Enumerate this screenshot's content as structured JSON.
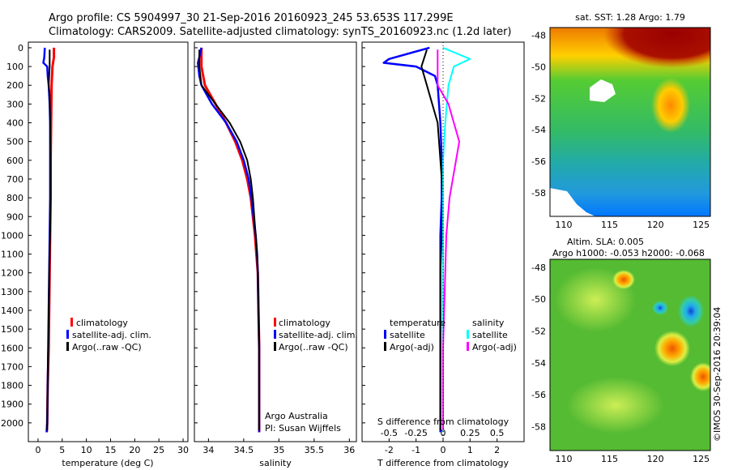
{
  "header": {
    "line1": "Argo profile: CS 5904997_30 21-Sep-2016 20160923_245 53.653S 117.299E",
    "line2": "Climatology: CARS2009. Satellite-adjusted climatology: synTS_20160923.nc (1.2d later)"
  },
  "colors": {
    "climatology": "#ff0000",
    "satellite": "#0000ff",
    "argo": "#000000",
    "sat_salinity": "#00ffff",
    "argo_salinity": "#ff00ff",
    "dotted": "#000000"
  },
  "depth_ticks": [
    "0",
    "100",
    "200",
    "300",
    "400",
    "500",
    "600",
    "700",
    "800",
    "900",
    "1000",
    "1100",
    "1200",
    "1300",
    "1400",
    "1500",
    "1600",
    "1700",
    "1800",
    "1900",
    "2000"
  ],
  "panels": {
    "temperature": {
      "xlabel": "temperature (deg C)",
      "xticks": [
        "0",
        "5",
        "10",
        "15",
        "20",
        "25",
        "30"
      ],
      "legend": [
        "climatology",
        "satellite-adj. clim.",
        "Argo(..raw -QC)"
      ]
    },
    "salinity": {
      "xlabel": "salinity",
      "xticks": [
        "34",
        "34.5",
        "35",
        "35.5",
        "36"
      ],
      "legend": [
        "climatology",
        "satellite-adj. clim.",
        "Argo(..raw -QC)"
      ],
      "note1": "Argo Australia",
      "note2": "PI: Susan Wijffels"
    },
    "difference": {
      "xlabel": "T difference from climatology",
      "xticks": [
        "-2",
        "-1",
        "0",
        "1",
        "2"
      ],
      "top_label": "S difference from climatology",
      "top_ticks": [
        "-0.5",
        "-0.25",
        "0",
        "0.25",
        "0.5"
      ],
      "legend_temp_title": "temperature",
      "legend_sal_title": "salinity",
      "legend_temp": [
        "satellite",
        "Argo(-adj)"
      ],
      "legend_sal": [
        "satellite",
        "Argo(-adj)"
      ]
    }
  },
  "maps": {
    "sst_title": "sat. SST: 1.28 Argo: 1.79",
    "sla_title1": "Altim. SLA: 0.005",
    "sla_title2": "Argo h1000: -0.053 h2000: -0.068",
    "lat_ticks": [
      "-48",
      "-50",
      "-52",
      "-54",
      "-56",
      "-58"
    ],
    "lon_ticks": [
      "110",
      "115",
      "120",
      "125"
    ],
    "credit": "©IMOS 30-Sep-2016 20:39:04"
  },
  "chart_data": [
    {
      "type": "line",
      "title": "",
      "xlabel": "temperature (deg C)",
      "ylabel": "",
      "xlim": [
        -2,
        31
      ],
      "ylim": [
        2100,
        0
      ],
      "series": [
        {
          "name": "climatology",
          "points": [
            [
              3.3,
              0
            ],
            [
              3.3,
              50
            ],
            [
              3.0,
              100
            ],
            [
              2.8,
              200
            ],
            [
              2.7,
              400
            ],
            [
              2.6,
              600
            ],
            [
              2.6,
              800
            ],
            [
              2.5,
              1000
            ],
            [
              2.4,
              1200
            ],
            [
              2.3,
              1400
            ],
            [
              2.2,
              1600
            ],
            [
              2.0,
              1800
            ],
            [
              1.9,
              2000
            ],
            [
              1.8,
              2050
            ]
          ]
        },
        {
          "name": "satellite-adj. clim.",
          "points": [
            [
              1.4,
              0
            ],
            [
              1.3,
              50
            ],
            [
              1.1,
              80
            ],
            [
              1.9,
              100
            ],
            [
              2.0,
              150
            ],
            [
              2.2,
              200
            ],
            [
              2.4,
              300
            ],
            [
              2.5,
              400
            ],
            [
              2.5,
              600
            ],
            [
              2.5,
              800
            ],
            [
              2.4,
              1000
            ],
            [
              2.3,
              1200
            ],
            [
              2.2,
              1400
            ],
            [
              2.1,
              1600
            ],
            [
              2.0,
              1800
            ],
            [
              1.9,
              2000
            ],
            [
              1.8,
              2050
            ]
          ]
        },
        {
          "name": "Argo(..raw -QC)",
          "points": [
            [
              2.4,
              10
            ],
            [
              2.4,
              100
            ],
            [
              2.2,
              200
            ],
            [
              2.4,
              250
            ],
            [
              2.5,
              400
            ],
            [
              2.6,
              600
            ],
            [
              2.6,
              800
            ],
            [
              2.5,
              1000
            ],
            [
              2.3,
              1200
            ],
            [
              2.2,
              1400
            ],
            [
              2.1,
              1600
            ],
            [
              2.0,
              1800
            ],
            [
              1.9,
              2000
            ],
            [
              1.9,
              2040
            ]
          ]
        }
      ]
    },
    {
      "type": "line",
      "title": "",
      "xlabel": "salinity",
      "ylabel": "",
      "xlim": [
        33.8,
        36.1
      ],
      "ylim": [
        2100,
        0
      ],
      "series": [
        {
          "name": "climatology",
          "points": [
            [
              33.9,
              0
            ],
            [
              33.9,
              100
            ],
            [
              33.95,
              200
            ],
            [
              34.1,
              300
            ],
            [
              34.25,
              400
            ],
            [
              34.38,
              500
            ],
            [
              34.48,
              600
            ],
            [
              34.55,
              700
            ],
            [
              34.6,
              800
            ],
            [
              34.63,
              900
            ],
            [
              34.66,
              1000
            ],
            [
              34.68,
              1100
            ],
            [
              34.7,
              1200
            ],
            [
              34.71,
              1400
            ],
            [
              34.72,
              1600
            ],
            [
              34.72,
              1800
            ],
            [
              34.72,
              2000
            ],
            [
              34.72,
              2050
            ]
          ]
        },
        {
          "name": "satellite-adj. clim.",
          "points": [
            [
              33.9,
              0
            ],
            [
              33.87,
              50
            ],
            [
              33.85,
              80
            ],
            [
              33.87,
              150
            ],
            [
              33.9,
              200
            ],
            [
              34.05,
              300
            ],
            [
              34.25,
              400
            ],
            [
              34.4,
              500
            ],
            [
              34.5,
              600
            ],
            [
              34.57,
              700
            ],
            [
              34.61,
              800
            ],
            [
              34.64,
              900
            ],
            [
              34.67,
              1000
            ],
            [
              34.69,
              1100
            ],
            [
              34.7,
              1200
            ],
            [
              34.71,
              1400
            ],
            [
              34.72,
              1600
            ],
            [
              34.72,
              1800
            ],
            [
              34.72,
              2000
            ],
            [
              34.72,
              2050
            ]
          ]
        },
        {
          "name": "Argo(..raw -QC)",
          "points": [
            [
              33.87,
              10
            ],
            [
              33.87,
              100
            ],
            [
              33.9,
              200
            ],
            [
              34.1,
              300
            ],
            [
              34.3,
              400
            ],
            [
              34.45,
              500
            ],
            [
              34.55,
              600
            ],
            [
              34.6,
              700
            ],
            [
              34.63,
              800
            ],
            [
              34.65,
              900
            ],
            [
              34.67,
              1000
            ],
            [
              34.69,
              1100
            ],
            [
              34.7,
              1200
            ],
            [
              34.71,
              1400
            ],
            [
              34.72,
              1600
            ],
            [
              34.72,
              1800
            ],
            [
              34.72,
              2000
            ],
            [
              34.72,
              2040
            ]
          ]
        }
      ]
    },
    {
      "type": "line",
      "title": "",
      "xlabel": "T difference from climatology",
      "ylabel": "",
      "xlim": [
        -3,
        3
      ],
      "ylim": [
        2100,
        0
      ],
      "series": [
        {
          "name": "temperature satellite",
          "points": [
            [
              -0.5,
              0
            ],
            [
              -2.0,
              60
            ],
            [
              -2.2,
              80
            ],
            [
              -1.0,
              100
            ],
            [
              -0.3,
              150
            ],
            [
              -0.2,
              200
            ],
            [
              -0.1,
              400
            ],
            [
              -0.05,
              600
            ],
            [
              -0.05,
              800
            ],
            [
              -0.1,
              1000
            ],
            [
              -0.1,
              1200
            ],
            [
              -0.1,
              1400
            ],
            [
              -0.1,
              1600
            ],
            [
              -0.1,
              1800
            ],
            [
              -0.1,
              2000
            ],
            [
              -0.1,
              2050
            ]
          ]
        },
        {
          "name": "temperature Argo(-adj)",
          "points": [
            [
              -0.6,
              10
            ],
            [
              -0.8,
              100
            ],
            [
              -0.6,
              200
            ],
            [
              -0.5,
              250
            ],
            [
              -0.2,
              400
            ],
            [
              -0.1,
              600
            ],
            [
              0.0,
              800
            ],
            [
              -0.05,
              1000
            ],
            [
              -0.1,
              1200
            ],
            [
              -0.1,
              1400
            ],
            [
              -0.1,
              1600
            ],
            [
              -0.1,
              1800
            ],
            [
              -0.1,
              2000
            ],
            [
              -0.1,
              2040
            ]
          ]
        },
        {
          "name": "salinity satellite",
          "points": [
            [
              0.0,
              0
            ],
            [
              0.25,
              60
            ],
            [
              0.1,
              100
            ],
            [
              0.05,
              200
            ],
            [
              0.02,
              400
            ],
            [
              0.0,
              600
            ],
            [
              0.0,
              1000
            ],
            [
              0.0,
              1400
            ],
            [
              0.0,
              1800
            ],
            [
              0.0,
              2050
            ]
          ]
        },
        {
          "name": "salinity Argo(-adj)",
          "points": [
            [
              -0.05,
              10
            ],
            [
              -0.05,
              100
            ],
            [
              -0.05,
              200
            ],
            [
              0.05,
              300
            ],
            [
              0.1,
              400
            ],
            [
              0.15,
              500
            ],
            [
              0.12,
              600
            ],
            [
              0.06,
              800
            ],
            [
              0.03,
              1000
            ],
            [
              0.02,
              1200
            ],
            [
              0.01,
              1400
            ],
            [
              0.0,
              1600
            ],
            [
              0.0,
              1800
            ],
            [
              0.0,
              2000
            ],
            [
              0.0,
              2040
            ]
          ]
        }
      ]
    },
    {
      "type": "heatmap",
      "title": "sat. SST: 1.28 Argo: 1.79",
      "xlim": [
        108.5,
        126
      ],
      "ylim": [
        -59.5,
        -47.5
      ],
      "colors": [
        "#8a0000",
        "#ff7700",
        "#44bb33",
        "#22aa88",
        "#2288dd"
      ]
    },
    {
      "type": "heatmap",
      "title": "Altim. SLA: 0.005",
      "xlim": [
        108.5,
        126
      ],
      "ylim": [
        -59.5,
        -47.5
      ],
      "colors": [
        "#44bb33",
        "#a0e040",
        "#ff7700",
        "#2288dd"
      ]
    }
  ]
}
